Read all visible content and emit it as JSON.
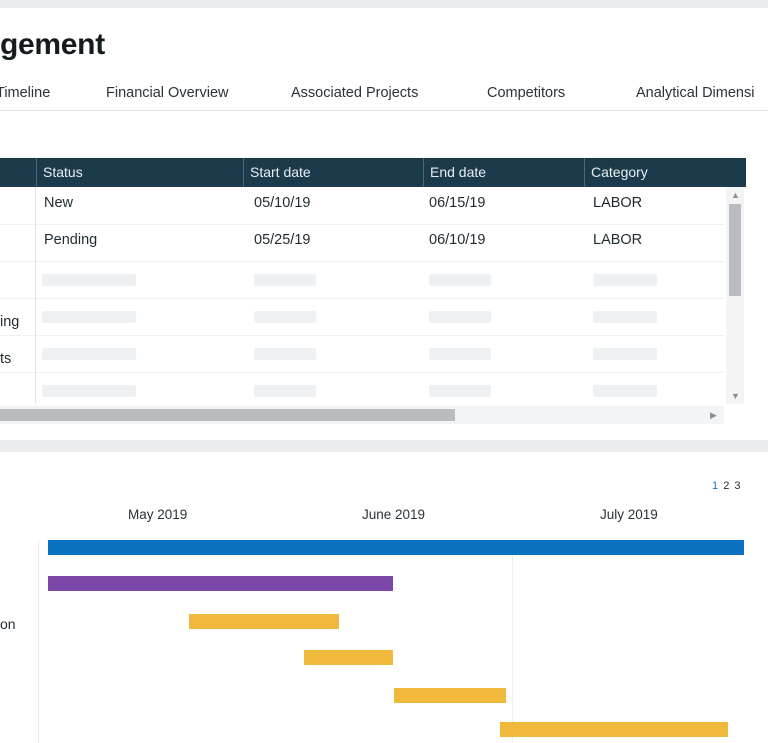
{
  "header": {
    "title": "gement"
  },
  "tabs": [
    {
      "label": "Timeline"
    },
    {
      "label": "Financial Overview"
    },
    {
      "label": "Associated Projects"
    },
    {
      "label": "Competitors"
    },
    {
      "label": "Analytical Dimensi"
    }
  ],
  "grid": {
    "columns": [
      "Status",
      "Start date",
      "End date",
      "Category"
    ],
    "rows": [
      {
        "status": "New",
        "start": "05/10/19",
        "end": "06/15/19",
        "category": "LABOR"
      },
      {
        "status": "Pending",
        "start": "05/25/19",
        "end": "06/10/19",
        "category": "LABOR"
      }
    ],
    "row_labels": [
      "ing",
      "ts"
    ]
  },
  "gantt": {
    "pager": [
      "1",
      "2",
      "3"
    ],
    "months": [
      "May 2019",
      "June 2019",
      "July 2019"
    ],
    "row_label": "on",
    "colors": {
      "blue": "#0a72c1",
      "purple": "#7b47a8",
      "yellow": "#f1b93c"
    }
  }
}
